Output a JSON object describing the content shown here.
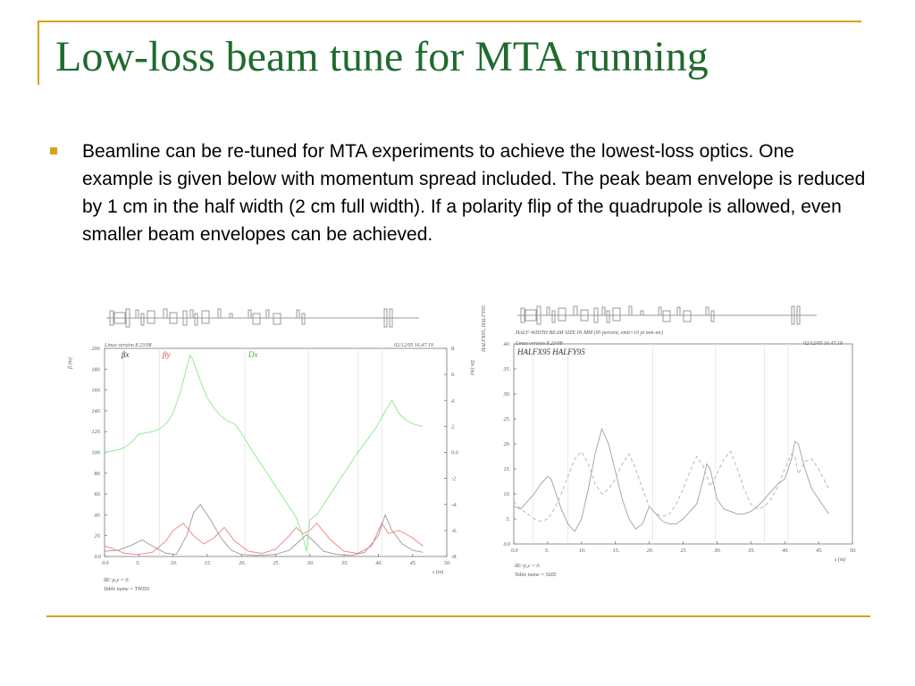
{
  "slide": {
    "title": "Low-loss beam tune for MTA running",
    "bullet": "Beamline can be re-tuned for MTA experiments to achieve the lowest-loss optics. One example is given below with momentum spread included. The peak beam envelope is reduced by 1 cm in the half width (2 cm full width).  If a polarity flip of the quadrupole is allowed, even smaller beam envelopes can be achieved."
  },
  "colors": {
    "title": "#1f6b2e",
    "frame": "#d4a21a",
    "beta_x": "#999999",
    "beta_y": "#f08080",
    "dispersion": "#88e888",
    "halfx": "#a0a0a0",
    "halfy": "#b0b0b0"
  },
  "chart_data": [
    {
      "type": "line",
      "header_left": "Linux version 8.23/08",
      "header_right": "02/12/05  16.47.19",
      "ylabel": "β (m)",
      "y2label": "Dx (m)",
      "xlabel": "s (m)",
      "xlim": [
        0,
        50
      ],
      "ylim": [
        0,
        200
      ],
      "y2lim": [
        -8,
        8
      ],
      "x_ticks": [
        "0.0",
        "5.",
        "10.",
        "15.",
        "20.",
        "25.",
        "30.",
        "35.",
        "40.",
        "45.",
        "50."
      ],
      "y_ticks": [
        "0.0",
        "20.",
        "40.",
        "60.",
        "80.",
        "100.",
        "120.",
        "140.",
        "160.",
        "180.",
        "200."
      ],
      "y2_ticks": [
        "-8.",
        "-6.",
        "-4.",
        "-2.",
        "0.0",
        "2.",
        "4.",
        "6.",
        "8."
      ],
      "footer_line1": "δE/ p₀c  =  0.",
      "footer_line2": "Table name = TWISS",
      "series": [
        {
          "name": "βx",
          "axis": "left",
          "x": [
            0,
            2,
            4,
            5.5,
            7,
            9,
            10.5,
            12,
            13,
            14,
            15.5,
            17,
            18.5,
            20,
            22,
            25,
            27,
            28.5,
            29.5,
            30.5,
            32,
            34,
            36,
            38,
            40,
            41,
            42,
            43.5,
            45,
            46.5
          ],
          "y": [
            5,
            6,
            11,
            16,
            10,
            3,
            2,
            20,
            42,
            50,
            35,
            18,
            6,
            2,
            1,
            2,
            6,
            15,
            21,
            15,
            5,
            2,
            1,
            4,
            20,
            40,
            25,
            12,
            6,
            4
          ]
        },
        {
          "name": "βy",
          "axis": "left",
          "x": [
            0,
            1,
            3,
            5,
            7,
            9,
            10,
            11.5,
            13,
            14.5,
            16,
            17.5,
            19,
            21,
            23,
            25,
            27,
            28,
            29,
            30,
            31,
            33,
            35,
            37,
            39,
            40.5,
            41.5,
            43,
            45,
            46.5
          ],
          "y": [
            10,
            8,
            3,
            2,
            4,
            15,
            25,
            32,
            20,
            12,
            18,
            28,
            15,
            5,
            3,
            7,
            20,
            28,
            22,
            25,
            32,
            16,
            5,
            3,
            10,
            32,
            22,
            25,
            18,
            10
          ]
        },
        {
          "name": "Dx",
          "axis": "right",
          "x": [
            0,
            2,
            3,
            4,
            5,
            6,
            7,
            8,
            9,
            10,
            11,
            12,
            12.5,
            13,
            14,
            15,
            16,
            17,
            18,
            19,
            20,
            21,
            22,
            23,
            24,
            25,
            26,
            27,
            28,
            29,
            29.5,
            30,
            31,
            32,
            33,
            34,
            35,
            36,
            37,
            38,
            39,
            40,
            41,
            42,
            43,
            44,
            45,
            46.5
          ],
          "y": [
            0.0,
            0.2,
            0.4,
            0.8,
            1.4,
            1.5,
            1.6,
            1.8,
            2.2,
            3.0,
            4.5,
            6.5,
            7.5,
            7.0,
            5.5,
            4.2,
            3.4,
            2.8,
            2.4,
            2.2,
            1.5,
            0.6,
            -0.2,
            -1.0,
            -1.8,
            -2.6,
            -3.4,
            -4.2,
            -5.0,
            -6.5,
            -7.6,
            -5.2,
            -4.8,
            -4.0,
            -3.2,
            -2.4,
            -1.6,
            -0.8,
            0.0,
            0.7,
            1.4,
            2.2,
            3.2,
            4.0,
            3.0,
            2.5,
            2.2,
            2.0
          ]
        }
      ]
    },
    {
      "type": "line",
      "header_top": "HALF-WIDTH BEAM SIZE IN MM (95 percent, emit=10 pi mm-mr)",
      "header_left": "Linux version 8.23/08",
      "header_right": "02/12/05  16.47.19",
      "legend": "HALFX95  HALFY95",
      "ylabel": "HALFX95, HALFY95",
      "xlabel": "s (m)",
      "xlim": [
        0,
        50
      ],
      "ylim": [
        0,
        40
      ],
      "x_ticks": [
        "0.0",
        "5.",
        "10.",
        "15.",
        "20.",
        "25.",
        "30.",
        "35.",
        "40.",
        "45.",
        "50."
      ],
      "y_ticks": [
        "0.0",
        "5.",
        "10.",
        "15.",
        "20.",
        "25.",
        "30.",
        "35.",
        "40."
      ],
      "footer_line1": "δE/ p₀c  =  0.",
      "footer_line2": "Table name = SIZE",
      "series": [
        {
          "name": "HALFX95",
          "style": "solid",
          "x": [
            0,
            1,
            2,
            3,
            4,
            5,
            5.5,
            6,
            7,
            8,
            9,
            10,
            11,
            12,
            13,
            14,
            15,
            16,
            17,
            18,
            19,
            20,
            21,
            22,
            23,
            24,
            25,
            26,
            27,
            28,
            28.5,
            29,
            29.5,
            30,
            31,
            32,
            33,
            34,
            35,
            36,
            37,
            38,
            39,
            40,
            41,
            41.5,
            42,
            43,
            44,
            45,
            46.5
          ],
          "y": [
            7.5,
            7.0,
            8.5,
            10.0,
            12.0,
            13.5,
            13.0,
            11.0,
            7.0,
            4.0,
            2.5,
            5.0,
            11.0,
            18.0,
            23.0,
            20.0,
            14.5,
            9.0,
            5.0,
            3.0,
            4.0,
            7.5,
            6.0,
            4.5,
            4.0,
            4.0,
            5.0,
            6.5,
            8.0,
            13.0,
            16.0,
            15.0,
            12.0,
            9.0,
            7.0,
            6.5,
            6.0,
            6.0,
            6.5,
            7.5,
            9.0,
            10.5,
            12.0,
            13.0,
            17.0,
            20.5,
            20.0,
            15.0,
            11.0,
            9.0,
            6.0
          ]
        },
        {
          "name": "HALFY95",
          "style": "dashed",
          "x": [
            0,
            1,
            2,
            3,
            4,
            5,
            6,
            7,
            8,
            9,
            10,
            11,
            12,
            13,
            14,
            15,
            16,
            17,
            18,
            19,
            20,
            21,
            22,
            23,
            24,
            25,
            26,
            27,
            28,
            29,
            30,
            31,
            32,
            33,
            34,
            35,
            36,
            37,
            38,
            39,
            40,
            41,
            41.5,
            42,
            43,
            44,
            45,
            46.5
          ],
          "y": [
            8.5,
            7.0,
            6.0,
            5.0,
            4.5,
            5.0,
            7.0,
            10.0,
            13.5,
            17.0,
            18.5,
            16.0,
            12.0,
            10.0,
            11.0,
            13.0,
            16.0,
            18.0,
            15.0,
            11.0,
            7.5,
            6.0,
            5.5,
            6.0,
            8.0,
            11.0,
            14.5,
            17.5,
            15.5,
            11.5,
            14.0,
            17.0,
            18.5,
            15.0,
            11.0,
            8.0,
            7.0,
            7.5,
            9.0,
            11.5,
            15.0,
            18.0,
            17.5,
            14.0,
            16.5,
            17.0,
            15.0,
            11.0
          ]
        }
      ]
    }
  ]
}
